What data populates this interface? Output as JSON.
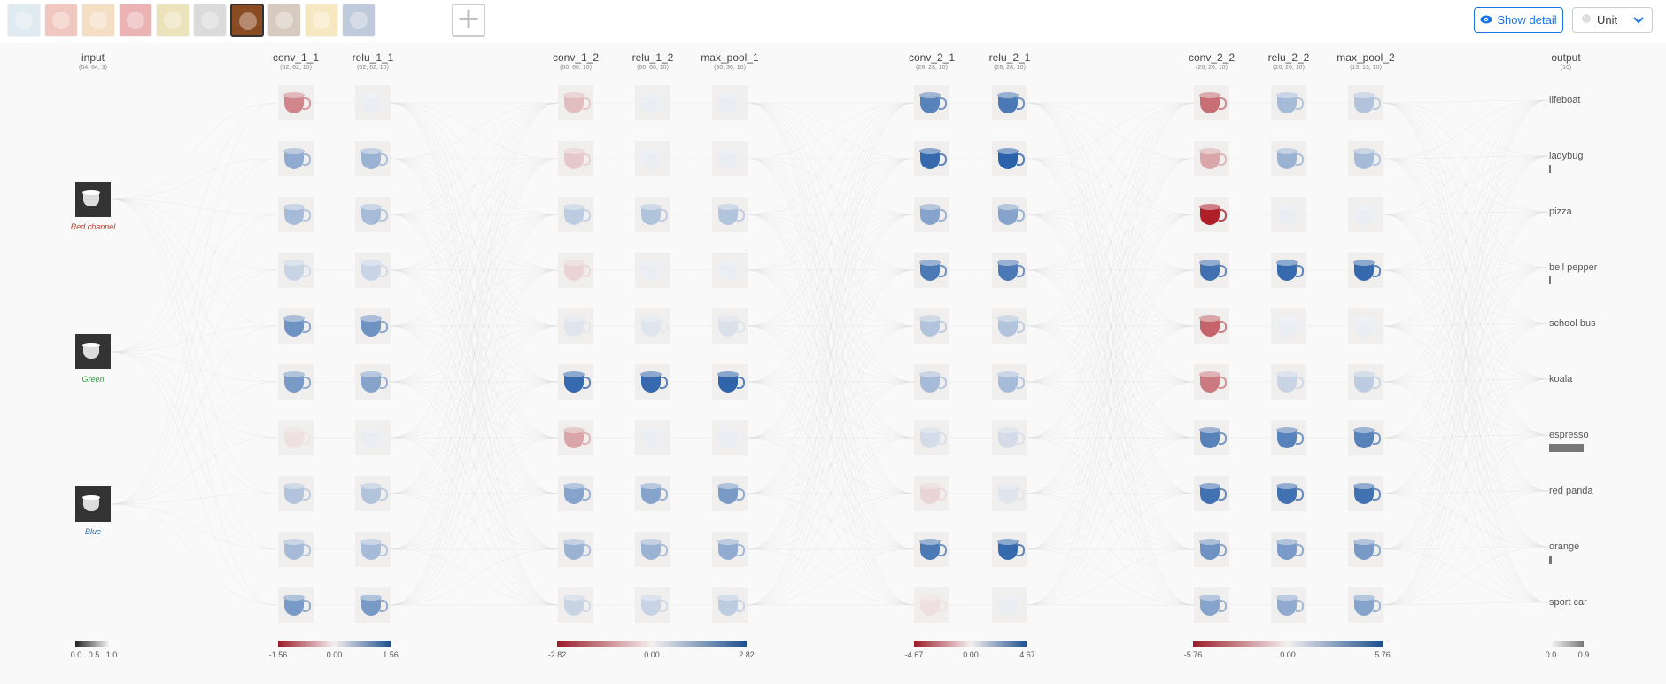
{
  "toolbar": {
    "images": [
      {
        "name": "lifeboat-thumbnail",
        "color": "#a8c4d8",
        "selected": false
      },
      {
        "name": "ladybug-thumbnail",
        "color": "#d9644a",
        "selected": false
      },
      {
        "name": "pizza-thumbnail",
        "color": "#e2a45a",
        "selected": false
      },
      {
        "name": "bell-pepper-thumbnail",
        "color": "#c8282a",
        "selected": false
      },
      {
        "name": "school-bus-thumbnail",
        "color": "#c9b040",
        "selected": false
      },
      {
        "name": "koala-thumbnail",
        "color": "#9a9a9a",
        "selected": false
      },
      {
        "name": "espresso-thumbnail",
        "color": "#8a4a22",
        "selected": true
      },
      {
        "name": "red-panda-thumbnail",
        "color": "#8e6a4a",
        "selected": false
      },
      {
        "name": "orange-thumbnail",
        "color": "#e8c250",
        "selected": false
      },
      {
        "name": "sport-car-thumbnail",
        "color": "#4a6a9a",
        "selected": false
      }
    ],
    "add_icon": "+",
    "show_detail_icon": "eye-icon",
    "show_detail_label": "Show detail",
    "color_mode_label": "Unit",
    "dropdown_icon": "chevron-down-icon"
  },
  "input": {
    "name": "input",
    "dims": "(64, 64, 3)",
    "channels": [
      {
        "label": "Red channel",
        "color": "#c0392b"
      },
      {
        "label": "Green",
        "color": "#2e9a40"
      },
      {
        "label": "Blue",
        "color": "#2f6fb5"
      }
    ],
    "scale": {
      "min": "0.0",
      "mid": "0.5",
      "max": "1.0"
    }
  },
  "layers": [
    {
      "name": "conv_1_1",
      "dims": "(62, 62, 10)",
      "group": 0,
      "values": [
        -0.5,
        0.45,
        0.35,
        0.2,
        0.6,
        0.55,
        -0.1,
        0.3,
        0.35,
        0.55
      ]
    },
    {
      "name": "relu_1_1",
      "dims": "(62, 62, 10)",
      "group": 0,
      "values": [
        0.05,
        0.4,
        0.35,
        0.2,
        0.6,
        0.5,
        0.05,
        0.3,
        0.35,
        0.55
      ]
    },
    {
      "name": "conv_1_2",
      "dims": "(60, 60, 10)",
      "group": 1,
      "values": [
        -0.25,
        -0.2,
        0.25,
        -0.15,
        0.1,
        0.85,
        -0.35,
        0.5,
        0.4,
        0.2
      ]
    },
    {
      "name": "relu_1_2",
      "dims": "(60, 60, 10)",
      "group": 1,
      "values": [
        0.05,
        0.05,
        0.3,
        0.05,
        0.1,
        0.85,
        0.05,
        0.5,
        0.4,
        0.2
      ]
    },
    {
      "name": "max_pool_1",
      "dims": "(30, 30, 10)",
      "group": 1,
      "values": [
        0.05,
        0.05,
        0.3,
        0.05,
        0.12,
        0.88,
        0.05,
        0.55,
        0.45,
        0.25
      ]
    },
    {
      "name": "conv_2_1",
      "dims": "(28, 28, 10)",
      "group": 2,
      "values": [
        0.7,
        0.85,
        0.5,
        0.75,
        0.3,
        0.35,
        0.15,
        -0.15,
        0.75,
        -0.1
      ]
    },
    {
      "name": "relu_2_1",
      "dims": "(28, 28, 10)",
      "group": 2,
      "values": [
        0.75,
        0.9,
        0.5,
        0.75,
        0.3,
        0.35,
        0.15,
        0.1,
        0.85,
        0.05
      ]
    },
    {
      "name": "conv_2_2",
      "dims": "(26, 26, 10)",
      "group": 3,
      "values": [
        -0.6,
        -0.35,
        -0.95,
        0.8,
        -0.65,
        -0.55,
        0.7,
        0.8,
        0.6,
        0.5
      ]
    },
    {
      "name": "relu_2_2",
      "dims": "(26, 26, 10)",
      "group": 3,
      "values": [
        0.35,
        0.4,
        0.05,
        0.85,
        0.05,
        0.2,
        0.7,
        0.8,
        0.55,
        0.45
      ]
    },
    {
      "name": "max_pool_2",
      "dims": "(13, 13, 10)",
      "group": 3,
      "values": [
        0.3,
        0.35,
        0.05,
        0.85,
        0.05,
        0.25,
        0.7,
        0.8,
        0.55,
        0.5
      ]
    }
  ],
  "scales": [
    {
      "min": "-1.56",
      "mid": "0.00",
      "max": "1.56"
    },
    {
      "min": "-2.82",
      "mid": "0.00",
      "max": "2.82"
    },
    {
      "min": "-4.67",
      "mid": "0.00",
      "max": "4.67"
    },
    {
      "min": "-5.76",
      "mid": "0.00",
      "max": "5.76"
    }
  ],
  "output": {
    "name": "output",
    "dims": "(10)",
    "classes": [
      {
        "label": "lifeboat",
        "prob": 0.0
      },
      {
        "label": "ladybug",
        "prob": 0.01
      },
      {
        "label": "pizza",
        "prob": 0.0
      },
      {
        "label": "bell pepper",
        "prob": 0.02
      },
      {
        "label": "school bus",
        "prob": 0.0
      },
      {
        "label": "koala",
        "prob": 0.0
      },
      {
        "label": "espresso",
        "prob": 0.9
      },
      {
        "label": "red panda",
        "prob": 0.0
      },
      {
        "label": "orange",
        "prob": 0.08
      },
      {
        "label": "sport car",
        "prob": 0.0
      }
    ],
    "scale": {
      "min": "0.0",
      "max": "0.9"
    }
  }
}
